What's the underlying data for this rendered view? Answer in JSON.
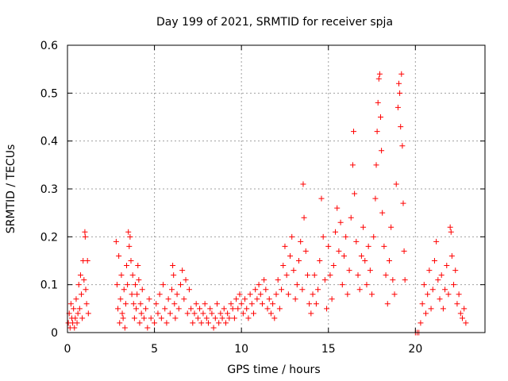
{
  "chart_data": {
    "type": "scatter",
    "title": "Day 199 of 2021, SRMTID for receiver spja",
    "xlabel": "GPS time / hours",
    "ylabel": "SRMTID / TECUs",
    "xlim": [
      0,
      24
    ],
    "ylim": [
      0,
      0.6
    ],
    "xticks": [
      0,
      5,
      10,
      15,
      20
    ],
    "xtick_labels": [
      "0",
      "5",
      "10",
      "15",
      "20"
    ],
    "yticks": [
      0,
      0.1,
      0.2,
      0.3,
      0.4,
      0.5,
      0.6
    ],
    "ytick_labels": [
      "0",
      "0.1",
      "0.2",
      "0.3",
      "0.4",
      "0.5",
      "0.6"
    ],
    "grid": true,
    "marker": "+",
    "color": "#ff0000",
    "series": [
      {
        "name": "SRMTID",
        "points": [
          [
            0.05,
            0.02
          ],
          [
            0.1,
            0.04
          ],
          [
            0.15,
            0.01
          ],
          [
            0.2,
            0.06
          ],
          [
            0.25,
            0.03
          ],
          [
            0.3,
            0.02
          ],
          [
            0.35,
            0.05
          ],
          [
            0.4,
            0.01
          ],
          [
            0.45,
            0.03
          ],
          [
            0.5,
            0.07
          ],
          [
            0.55,
            0.02
          ],
          [
            0.6,
            0.04
          ],
          [
            0.65,
            0.1
          ],
          [
            0.7,
            0.05
          ],
          [
            0.75,
            0.12
          ],
          [
            0.8,
            0.08
          ],
          [
            0.85,
            0.03
          ],
          [
            0.9,
            0.15
          ],
          [
            0.95,
            0.11
          ],
          [
            1.0,
            0.21
          ],
          [
            1.02,
            0.2
          ],
          [
            1.05,
            0.09
          ],
          [
            1.1,
            0.06
          ],
          [
            1.15,
            0.15
          ],
          [
            1.2,
            0.04
          ],
          [
            2.8,
            0.19
          ],
          [
            2.85,
            0.1
          ],
          [
            2.9,
            0.05
          ],
          [
            2.95,
            0.16
          ],
          [
            3.0,
            0.02
          ],
          [
            3.05,
            0.07
          ],
          [
            3.1,
            0.12
          ],
          [
            3.15,
            0.04
          ],
          [
            3.2,
            0.03
          ],
          [
            3.25,
            0.09
          ],
          [
            3.3,
            0.01
          ],
          [
            3.35,
            0.06
          ],
          [
            3.4,
            0.14
          ],
          [
            3.45,
            0.1
          ],
          [
            3.5,
            0.21
          ],
          [
            3.55,
            0.18
          ],
          [
            3.6,
            0.2
          ],
          [
            3.65,
            0.15
          ],
          [
            3.7,
            0.08
          ],
          [
            3.75,
            0.12
          ],
          [
            3.8,
            0.06
          ],
          [
            3.85,
            0.03
          ],
          [
            3.9,
            0.1
          ],
          [
            3.95,
            0.05
          ],
          [
            4.0,
            0.08
          ],
          [
            4.05,
            0.14
          ],
          [
            4.1,
            0.11
          ],
          [
            4.15,
            0.02
          ],
          [
            4.2,
            0.06
          ],
          [
            4.25,
            0.04
          ],
          [
            4.3,
            0.09
          ],
          [
            4.4,
            0.03
          ],
          [
            4.5,
            0.05
          ],
          [
            4.6,
            0.01
          ],
          [
            4.7,
            0.07
          ],
          [
            4.8,
            0.03
          ],
          [
            5.0,
            0.02
          ],
          [
            5.1,
            0.06
          ],
          [
            5.2,
            0.04
          ],
          [
            5.3,
            0.08
          ],
          [
            5.4,
            0.03
          ],
          [
            5.5,
            0.1
          ],
          [
            5.6,
            0.05
          ],
          [
            5.7,
            0.02
          ],
          [
            5.8,
            0.07
          ],
          [
            5.9,
            0.04
          ],
          [
            6.0,
            0.09
          ],
          [
            6.05,
            0.14
          ],
          [
            6.1,
            0.12
          ],
          [
            6.15,
            0.06
          ],
          [
            6.2,
            0.03
          ],
          [
            6.3,
            0.08
          ],
          [
            6.4,
            0.05
          ],
          [
            6.5,
            0.1
          ],
          [
            6.6,
            0.13
          ],
          [
            6.7,
            0.07
          ],
          [
            6.8,
            0.11
          ],
          [
            6.9,
            0.04
          ],
          [
            7.0,
            0.09
          ],
          [
            7.1,
            0.05
          ],
          [
            7.2,
            0.02
          ],
          [
            7.3,
            0.04
          ],
          [
            7.4,
            0.06
          ],
          [
            7.5,
            0.03
          ],
          [
            7.6,
            0.05
          ],
          [
            7.7,
            0.02
          ],
          [
            7.8,
            0.04
          ],
          [
            7.9,
            0.06
          ],
          [
            8.0,
            0.03
          ],
          [
            8.1,
            0.02
          ],
          [
            8.2,
            0.05
          ],
          [
            8.3,
            0.04
          ],
          [
            8.4,
            0.01
          ],
          [
            8.5,
            0.03
          ],
          [
            8.6,
            0.06
          ],
          [
            8.7,
            0.02
          ],
          [
            8.8,
            0.04
          ],
          [
            8.9,
            0.03
          ],
          [
            9.0,
            0.05
          ],
          [
            9.1,
            0.02
          ],
          [
            9.2,
            0.04
          ],
          [
            9.3,
            0.03
          ],
          [
            9.4,
            0.06
          ],
          [
            9.5,
            0.05
          ],
          [
            9.6,
            0.03
          ],
          [
            9.7,
            0.07
          ],
          [
            9.8,
            0.05
          ],
          [
            9.9,
            0.08
          ],
          [
            10.0,
            0.06
          ],
          [
            10.1,
            0.04
          ],
          [
            10.2,
            0.07
          ],
          [
            10.3,
            0.05
          ],
          [
            10.4,
            0.03
          ],
          [
            10.5,
            0.08
          ],
          [
            10.6,
            0.06
          ],
          [
            10.7,
            0.04
          ],
          [
            10.8,
            0.09
          ],
          [
            10.9,
            0.07
          ],
          [
            11.0,
            0.1
          ],
          [
            11.1,
            0.08
          ],
          [
            11.2,
            0.06
          ],
          [
            11.3,
            0.11
          ],
          [
            11.4,
            0.09
          ],
          [
            11.5,
            0.05
          ],
          [
            11.6,
            0.07
          ],
          [
            11.7,
            0.04
          ],
          [
            11.8,
            0.06
          ],
          [
            11.9,
            0.03
          ],
          [
            12.0,
            0.08
          ],
          [
            12.1,
            0.11
          ],
          [
            12.2,
            0.05
          ],
          [
            12.3,
            0.09
          ],
          [
            12.4,
            0.14
          ],
          [
            12.5,
            0.18
          ],
          [
            12.6,
            0.12
          ],
          [
            12.7,
            0.08
          ],
          [
            12.8,
            0.16
          ],
          [
            12.9,
            0.2
          ],
          [
            13.0,
            0.13
          ],
          [
            13.1,
            0.07
          ],
          [
            13.2,
            0.1
          ],
          [
            13.3,
            0.15
          ],
          [
            13.4,
            0.19
          ],
          [
            13.5,
            0.09
          ],
          [
            13.55,
            0.31
          ],
          [
            13.6,
            0.24
          ],
          [
            13.7,
            0.17
          ],
          [
            13.8,
            0.12
          ],
          [
            13.9,
            0.06
          ],
          [
            14.0,
            0.04
          ],
          [
            14.1,
            0.08
          ],
          [
            14.2,
            0.12
          ],
          [
            14.3,
            0.06
          ],
          [
            14.4,
            0.09
          ],
          [
            14.5,
            0.15
          ],
          [
            14.6,
            0.28
          ],
          [
            14.7,
            0.2
          ],
          [
            14.8,
            0.11
          ],
          [
            14.9,
            0.05
          ],
          [
            15.0,
            0.18
          ],
          [
            15.1,
            0.12
          ],
          [
            15.2,
            0.07
          ],
          [
            15.3,
            0.14
          ],
          [
            15.4,
            0.21
          ],
          [
            15.5,
            0.26
          ],
          [
            15.6,
            0.17
          ],
          [
            15.7,
            0.23
          ],
          [
            15.8,
            0.1
          ],
          [
            15.9,
            0.16
          ],
          [
            16.0,
            0.2
          ],
          [
            16.1,
            0.08
          ],
          [
            16.2,
            0.13
          ],
          [
            16.3,
            0.24
          ],
          [
            16.4,
            0.35
          ],
          [
            16.45,
            0.42
          ],
          [
            16.5,
            0.29
          ],
          [
            16.6,
            0.19
          ],
          [
            16.7,
            0.12
          ],
          [
            16.8,
            0.09
          ],
          [
            16.9,
            0.16
          ],
          [
            17.0,
            0.22
          ],
          [
            17.1,
            0.15
          ],
          [
            17.2,
            0.1
          ],
          [
            17.3,
            0.18
          ],
          [
            17.4,
            0.13
          ],
          [
            17.5,
            0.08
          ],
          [
            17.6,
            0.2
          ],
          [
            17.7,
            0.28
          ],
          [
            17.75,
            0.35
          ],
          [
            17.8,
            0.42
          ],
          [
            17.85,
            0.48
          ],
          [
            17.9,
            0.53
          ],
          [
            17.95,
            0.54
          ],
          [
            18.0,
            0.45
          ],
          [
            18.05,
            0.38
          ],
          [
            18.1,
            0.25
          ],
          [
            18.2,
            0.18
          ],
          [
            18.3,
            0.12
          ],
          [
            18.4,
            0.06
          ],
          [
            18.5,
            0.15
          ],
          [
            18.6,
            0.22
          ],
          [
            18.7,
            0.11
          ],
          [
            18.8,
            0.08
          ],
          [
            18.9,
            0.31
          ],
          [
            19.0,
            0.47
          ],
          [
            19.05,
            0.52
          ],
          [
            19.1,
            0.5
          ],
          [
            19.15,
            0.43
          ],
          [
            19.2,
            0.54
          ],
          [
            19.25,
            0.39
          ],
          [
            19.3,
            0.27
          ],
          [
            19.35,
            0.17
          ],
          [
            19.4,
            0.11
          ],
          [
            20.0,
            0.0
          ],
          [
            20.1,
            0.0
          ],
          [
            20.2,
            0.0
          ],
          [
            20.3,
            0.02
          ],
          [
            20.4,
            0.06
          ],
          [
            20.5,
            0.1
          ],
          [
            20.6,
            0.04
          ],
          [
            20.7,
            0.08
          ],
          [
            20.8,
            0.13
          ],
          [
            20.9,
            0.05
          ],
          [
            21.0,
            0.09
          ],
          [
            21.1,
            0.15
          ],
          [
            21.2,
            0.19
          ],
          [
            21.3,
            0.11
          ],
          [
            21.4,
            0.07
          ],
          [
            21.5,
            0.12
          ],
          [
            21.6,
            0.05
          ],
          [
            21.7,
            0.09
          ],
          [
            21.8,
            0.14
          ],
          [
            21.9,
            0.08
          ],
          [
            22.0,
            0.22
          ],
          [
            22.05,
            0.21
          ],
          [
            22.1,
            0.16
          ],
          [
            22.2,
            0.1
          ],
          [
            22.3,
            0.13
          ],
          [
            22.4,
            0.06
          ],
          [
            22.5,
            0.08
          ],
          [
            22.6,
            0.04
          ],
          [
            22.7,
            0.03
          ],
          [
            22.8,
            0.05
          ],
          [
            22.9,
            0.02
          ]
        ]
      }
    ]
  }
}
